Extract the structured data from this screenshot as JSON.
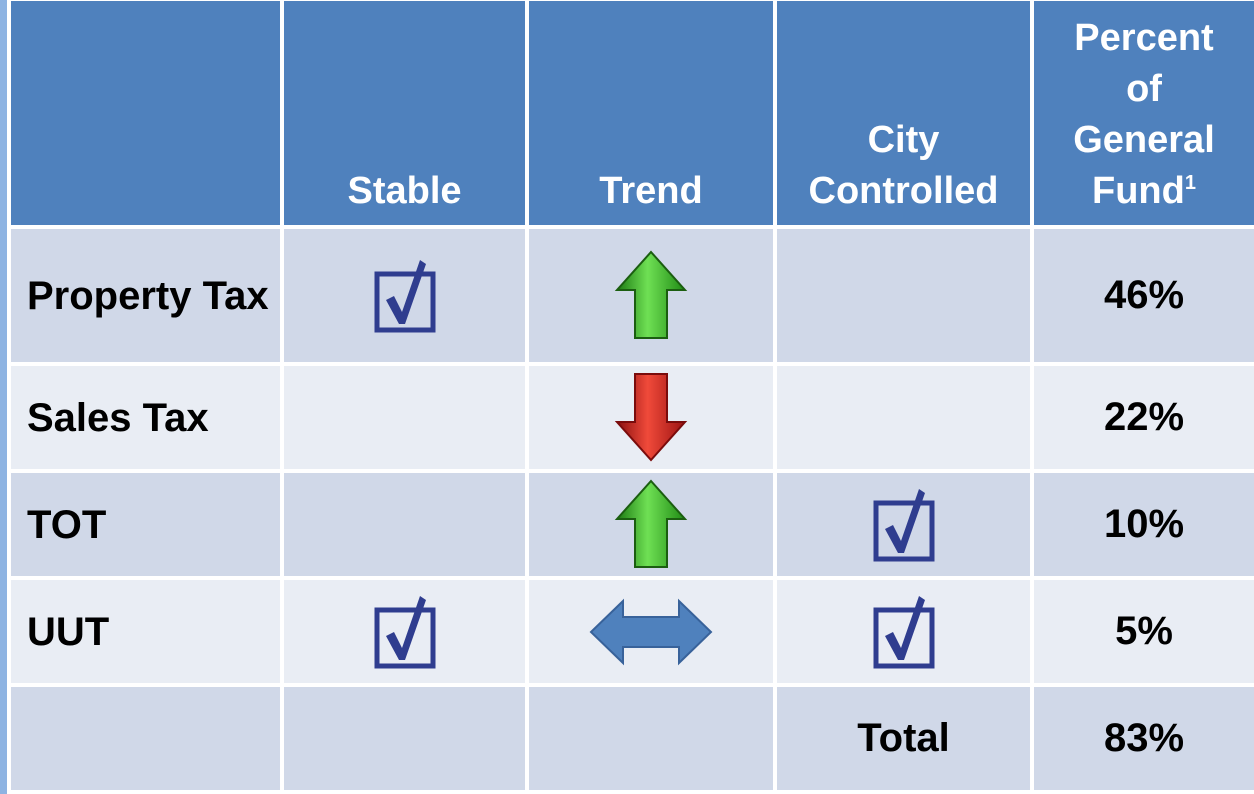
{
  "table": {
    "columns": [
      "Stable",
      "Trend",
      "City Controlled",
      "Percent of General Fund"
    ],
    "footnote_mark": "1",
    "rows": [
      {
        "label": "Property Tax",
        "percent": "46%"
      },
      {
        "label": "Sales Tax",
        "percent": "22%"
      },
      {
        "label": "TOT",
        "percent": "10%"
      },
      {
        "label": "UUT",
        "percent": "5%"
      }
    ],
    "total": {
      "label": "Total",
      "percent": "83%"
    }
  }
}
